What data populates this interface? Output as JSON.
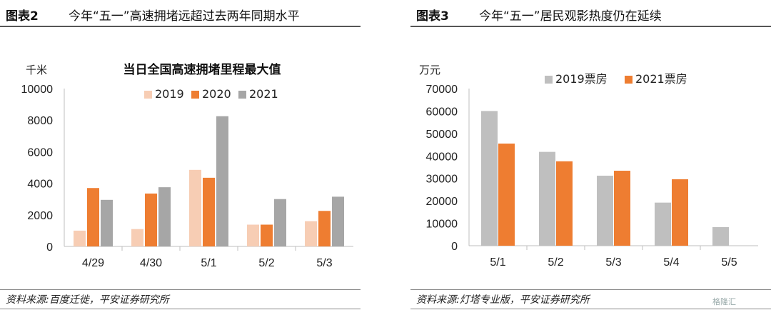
{
  "left": {
    "fig_label": "图表2",
    "fig_title": "今年“五一”高速拥堵远超过去两年同期水平",
    "source": "资料来源:百度迁徙，平安证券研究所"
  },
  "right": {
    "fig_label": "图表3",
    "fig_title": "今年“五一”居民观影热度仍在延续",
    "source": "资料来源:灯塔专业版，平安证券研究所"
  },
  "watermark": "格隆汇",
  "colors": {
    "c2019a": "#f7cdb4",
    "c2020": "#ee7d31",
    "c2021": "#a6a6a6",
    "c2019b": "#bfbfbf",
    "c2021b": "#ee7d31"
  },
  "chart_data": [
    {
      "type": "bar",
      "title": "当日全国高速拥堵里程最大值",
      "ylabel": "千米",
      "categories": [
        "4/29",
        "4/30",
        "5/1",
        "5/2",
        "5/3"
      ],
      "series": [
        {
          "name": "2019",
          "values": [
            1000,
            1100,
            4850,
            1380,
            1600
          ]
        },
        {
          "name": "2020",
          "values": [
            3700,
            3350,
            4350,
            1380,
            2250
          ]
        },
        {
          "name": "2021",
          "values": [
            2950,
            3750,
            8250,
            3000,
            3150
          ]
        }
      ],
      "ylim": [
        0,
        10000
      ],
      "yticks": [
        "0",
        "2000",
        "4000",
        "6000",
        "8000",
        "10000"
      ],
      "legend": "top-right",
      "grid": false
    },
    {
      "type": "bar",
      "title": "",
      "ylabel": "万元",
      "categories": [
        "5/1",
        "5/2",
        "5/3",
        "5/4",
        "5/5"
      ],
      "series": [
        {
          "name": "2019票房",
          "values": [
            60000,
            41800,
            31200,
            19200,
            8300
          ]
        },
        {
          "name": "2021票房",
          "values": [
            45500,
            37600,
            33400,
            29600,
            null
          ]
        }
      ],
      "ylim": [
        0,
        70000
      ],
      "yticks": [
        "0",
        "10000",
        "20000",
        "30000",
        "40000",
        "50000",
        "60000",
        "70000"
      ],
      "legend": "top-center",
      "grid": false
    }
  ]
}
